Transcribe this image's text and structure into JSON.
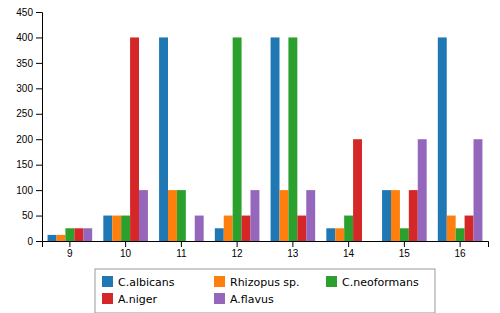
{
  "chart_data": {
    "type": "bar",
    "categories": [
      "9",
      "10",
      "11",
      "12",
      "13",
      "14",
      "15",
      "16"
    ],
    "series": [
      {
        "name": "C.albicans",
        "values": [
          12,
          50,
          400,
          25,
          400,
          25,
          100,
          400
        ]
      },
      {
        "name": "Rhizopus sp.",
        "values": [
          12,
          50,
          100,
          50,
          100,
          25,
          100,
          50
        ]
      },
      {
        "name": "C.neoformans",
        "values": [
          25,
          50,
          100,
          400,
          400,
          50,
          25,
          25
        ]
      },
      {
        "name": "A.niger",
        "values": [
          25,
          400,
          0,
          50,
          50,
          200,
          100,
          50
        ]
      },
      {
        "name": "A.flavus",
        "values": [
          25,
          100,
          50,
          100,
          100,
          0,
          200,
          200
        ]
      }
    ],
    "ylim": [
      0,
      450
    ],
    "yticks": [
      0,
      50,
      100,
      150,
      200,
      250,
      300,
      350,
      400,
      450
    ],
    "grid": false,
    "legend": "bottom"
  }
}
